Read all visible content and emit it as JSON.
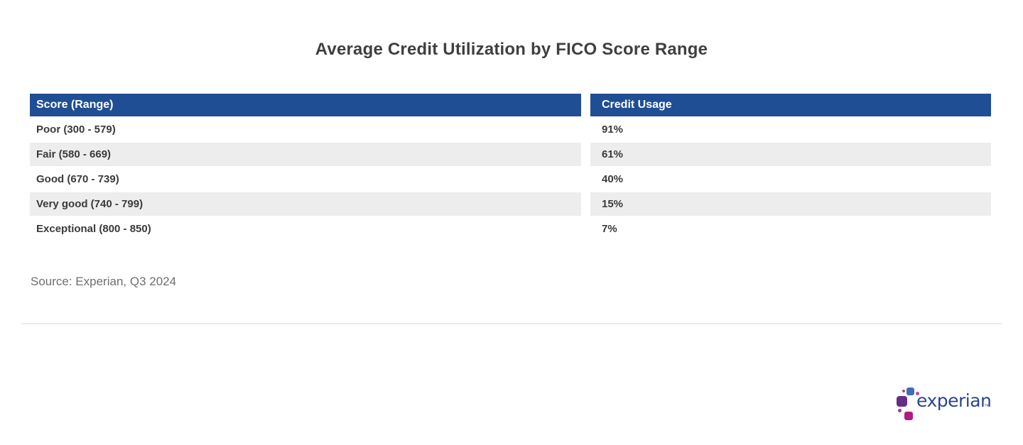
{
  "title": "Average Credit Utilization by FICO Score Range",
  "table": {
    "columns": {
      "score": "Score (Range)",
      "usage": "Credit Usage"
    },
    "rows": [
      {
        "score": "Poor (300 - 579)",
        "usage": "91%"
      },
      {
        "score": "Fair (580 - 669)",
        "usage": "61%"
      },
      {
        "score": "Good (670 - 739)",
        "usage": "40%"
      },
      {
        "score": "Very good (740 - 799)",
        "usage": "15%"
      },
      {
        "score": "Exceptional (800 - 850)",
        "usage": "7%"
      }
    ]
  },
  "chart_data": {
    "type": "table",
    "title": "Average Credit Utilization by FICO Score Range",
    "columns": [
      "Score (Range)",
      "Credit Usage"
    ],
    "categories": [
      "Poor (300 - 579)",
      "Fair (580 - 669)",
      "Good (670 - 739)",
      "Very good (740 - 799)",
      "Exceptional (800 - 850)"
    ],
    "values": [
      91,
      61,
      40,
      15,
      7
    ],
    "value_unit": "%",
    "source_note": "Source: Experian, Q3 2024",
    "layout": {
      "striped_rows": true,
      "header_background": "#1f4e94",
      "stripe_color": "#ededed"
    }
  },
  "source": "Source: Experian, Q3 2024",
  "logo": {
    "text": "experian",
    "trademark": "™"
  },
  "colors": {
    "header_blue": "#1f4e94",
    "row_stripe": "#ededed",
    "title_text": "#3f3f3f",
    "cell_text": "#3a3a3a",
    "source_text": "#6f6f6f",
    "logo_blue_text": "#2b4590",
    "brand_light_blue": "#3f6eb4",
    "brand_purple": "#652d86",
    "brand_magenta": "#b01c82"
  }
}
